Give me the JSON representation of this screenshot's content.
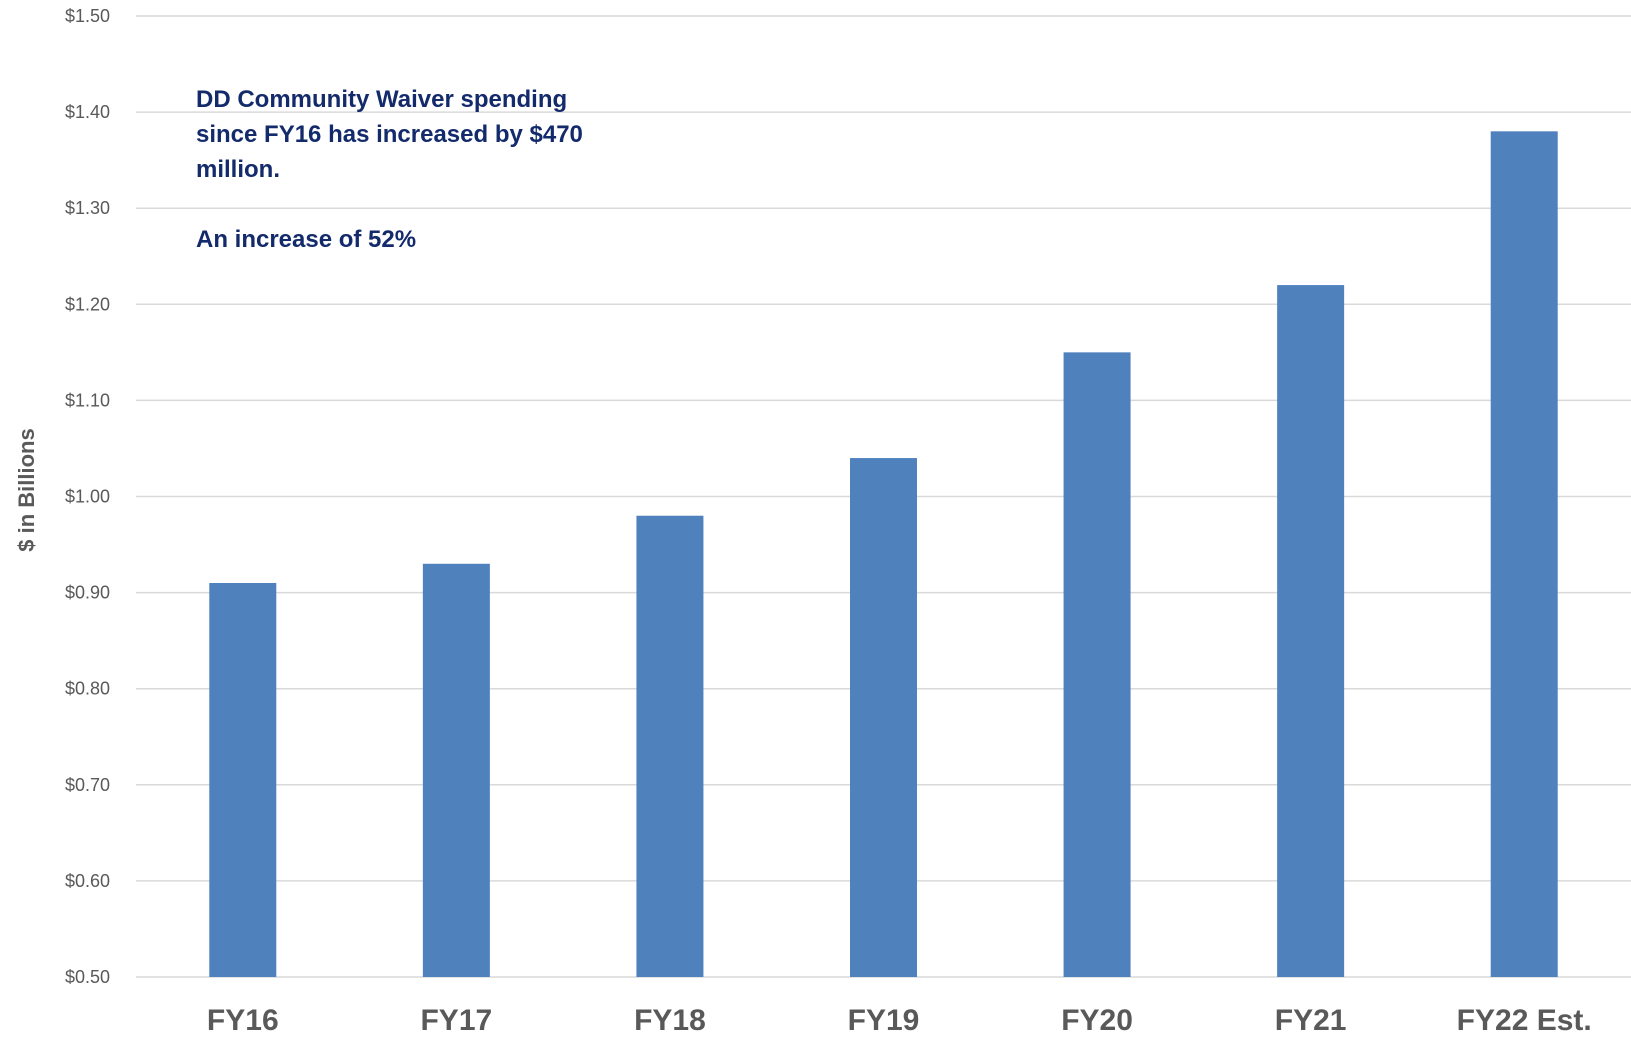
{
  "chart_data": {
    "type": "bar",
    "title": "",
    "xlabel": "",
    "ylabel": "$ in Billions",
    "ylim": [
      0.5,
      1.5
    ],
    "yticks": [
      0.5,
      0.6,
      0.7,
      0.8,
      0.9,
      1.0,
      1.1,
      1.2,
      1.3,
      1.4,
      1.5
    ],
    "ytick_labels": [
      "$0.50",
      "$0.60",
      "$0.70",
      "$0.80",
      "$0.90",
      "$1.00",
      "$1.10",
      "$1.20",
      "$1.30",
      "$1.40",
      "$1.50"
    ],
    "categories": [
      "FY16",
      "FY17",
      "FY18",
      "FY19",
      "FY20",
      "FY21",
      "FY22 Est."
    ],
    "values": [
      0.91,
      0.93,
      0.98,
      1.04,
      1.15,
      1.22,
      1.38
    ],
    "grid": true,
    "legend": "none",
    "bar_color": "#4f81bd",
    "grid_color": "#d9d9d9",
    "annotation": {
      "line1": "DD Community Waiver spending since FY16 has increased by $470 million.",
      "line2": "An increase of 52%",
      "color": "#132a6b"
    }
  }
}
